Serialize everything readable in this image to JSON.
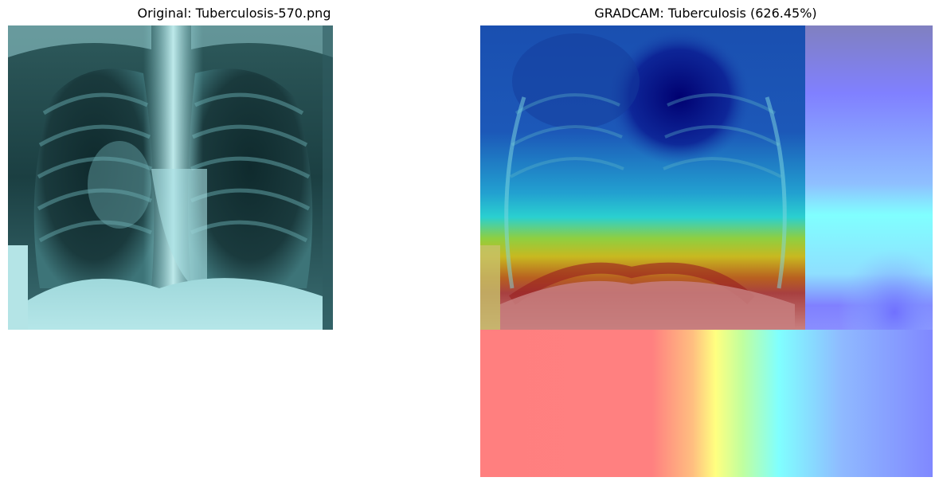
{
  "panels": [
    {
      "title": "Original: Tuberculosis-570.png",
      "subject": "chest-xray"
    },
    {
      "title": "GRADCAM: Tuberculosis (626.45%)",
      "subject": "gradcam-heatmap-overlay"
    }
  ],
  "colors": {
    "xray_bg": "#0e2a2e",
    "xray_bright": "#a8dde0",
    "heat_red": "#ff7f7f",
    "heat_yellow": "#ffff80",
    "heat_cyan": "#80ffff",
    "heat_blue": "#8080ff",
    "heat_navy": "#000080"
  }
}
